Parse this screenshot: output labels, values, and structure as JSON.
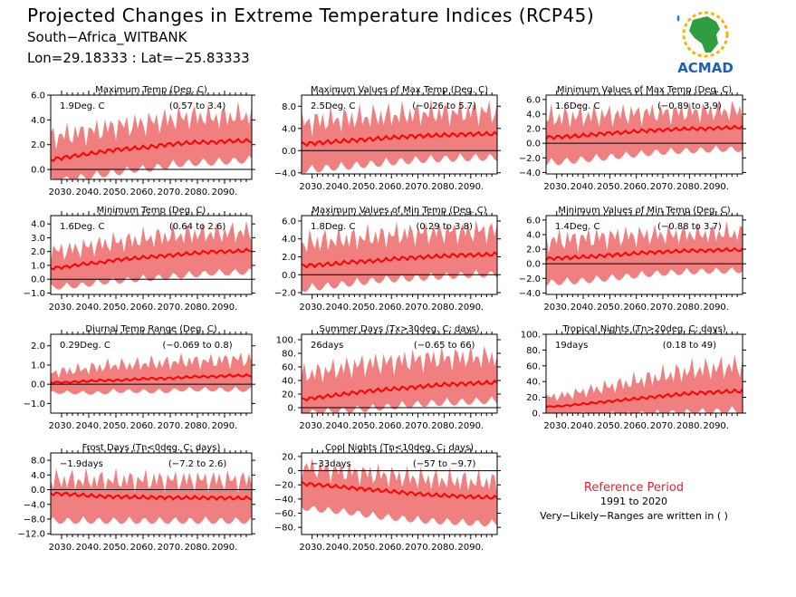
{
  "header": {
    "title": "Projected Changes in Extreme Temperature Indices (RCP45)",
    "station": "South−Africa_WITBANK",
    "coordinates": "Lon=29.18333 : Lat=−25.83333"
  },
  "logo": {
    "text": "ACMAD",
    "icon": "africa-map-logo"
  },
  "reference": {
    "title": "Reference Period",
    "years": "1991 to 2020",
    "note": "Very−Likely−Ranges are written in ( )"
  },
  "colors": {
    "band": "#f08080",
    "line": "#ff0000",
    "zero_line": "#000000"
  },
  "chart_data": [
    {
      "type": "area",
      "title": "Maximum Temp (Deg. C)",
      "mean_label": "1.9Deg. C",
      "range_label": "(0.57 to 3.4)",
      "xticks": [
        "2030.",
        "2040.",
        "2050.",
        "2060.",
        "2070.",
        "2080.",
        "2090."
      ],
      "xlim": [
        2026,
        2100
      ],
      "ylim": [
        -0.8,
        6.0
      ],
      "yticks": [
        "6.0",
        "4.0",
        "2.0",
        "0.0"
      ],
      "ytick_values": [
        6,
        4,
        2,
        0
      ],
      "x": [
        2026,
        2032,
        2038,
        2044,
        2050,
        2056,
        2062,
        2068,
        2074,
        2080,
        2086,
        2092,
        2100
      ],
      "median": [
        0.8,
        1.0,
        1.2,
        1.4,
        1.6,
        1.7,
        1.8,
        2.0,
        2.1,
        2.2,
        2.2,
        2.3,
        2.3
      ],
      "upper": [
        2.6,
        2.8,
        3.0,
        3.2,
        3.5,
        3.6,
        3.8,
        4.0,
        4.2,
        4.3,
        4.2,
        4.3,
        4.4
      ],
      "lower": [
        -0.6,
        -0.4,
        -0.2,
        0.0,
        0.2,
        0.4,
        0.5,
        0.7,
        0.9,
        1.0,
        1.0,
        1.1,
        1.2
      ]
    },
    {
      "type": "area",
      "title": "Maximum Values of Max Temp (Deg. C)",
      "mean_label": "2.5Deg. C",
      "range_label": "(−0.26 to 5.7)",
      "xticks": [
        "2030.",
        "2040.",
        "2050.",
        "2060.",
        "2070.",
        "2080.",
        "2090."
      ],
      "xlim": [
        2026,
        2100
      ],
      "ylim": [
        -4.2,
        10.0
      ],
      "yticks": [
        "8.0",
        "4.0",
        "0.0",
        "−4.0"
      ],
      "ytick_values": [
        8,
        4,
        0,
        -4
      ],
      "x": [
        2026,
        2032,
        2038,
        2044,
        2050,
        2056,
        2062,
        2068,
        2074,
        2080,
        2086,
        2092,
        2100
      ],
      "median": [
        1.2,
        1.4,
        1.6,
        1.8,
        2.0,
        2.2,
        2.4,
        2.6,
        2.7,
        2.8,
        2.9,
        3.0,
        3.0
      ],
      "upper": [
        5.0,
        5.3,
        5.6,
        5.8,
        6.0,
        6.2,
        6.4,
        6.6,
        6.8,
        6.8,
        6.9,
        7.0,
        7.0
      ],
      "lower": [
        -2.5,
        -2.3,
        -2.0,
        -1.8,
        -1.5,
        -1.3,
        -1.0,
        -0.8,
        -0.6,
        -0.5,
        -0.4,
        -0.3,
        -0.3
      ]
    },
    {
      "type": "area",
      "title": "Minimum Values of Max Temp (Deg. C)",
      "mean_label": "1.6Deg. C",
      "range_label": "(−0.89 to 3.9)",
      "xticks": [
        "2030.",
        "2040.",
        "2050.",
        "2060.",
        "2070.",
        "2080.",
        "2090."
      ],
      "xlim": [
        2026,
        2100
      ],
      "ylim": [
        -4.2,
        6.6
      ],
      "yticks": [
        "6.0",
        "4.0",
        "2.0",
        "0.0",
        "−2.0",
        "−4.0"
      ],
      "ytick_values": [
        6,
        4,
        2,
        0,
        -2,
        -4
      ],
      "x": [
        2026,
        2032,
        2038,
        2044,
        2050,
        2056,
        2062,
        2068,
        2074,
        2080,
        2086,
        2092,
        2100
      ],
      "median": [
        0.8,
        0.9,
        1.0,
        1.2,
        1.4,
        1.5,
        1.7,
        1.8,
        1.9,
        2.0,
        2.0,
        2.1,
        2.2
      ],
      "upper": [
        3.5,
        3.6,
        3.7,
        3.8,
        3.9,
        4.0,
        4.1,
        4.2,
        4.2,
        4.3,
        4.4,
        4.4,
        4.5
      ],
      "lower": [
        -2.0,
        -1.8,
        -1.6,
        -1.4,
        -1.2,
        -1.0,
        -0.8,
        -0.6,
        -0.5,
        -0.4,
        -0.3,
        -0.2,
        -0.2
      ]
    },
    {
      "type": "area",
      "title": "Minimum Temp (Deg. C)",
      "mean_label": "1.6Deg. C",
      "range_label": "(0.64 to 2.6)",
      "xticks": [
        "2030.",
        "2040.",
        "2050.",
        "2060.",
        "2070.",
        "2080.",
        "2090."
      ],
      "xlim": [
        2026,
        2100
      ],
      "ylim": [
        -1.1,
        4.6
      ],
      "yticks": [
        "4.0",
        "3.0",
        "2.0",
        "1.0",
        "0.0",
        "−1.0"
      ],
      "ytick_values": [
        4,
        3,
        2,
        1,
        0,
        -1
      ],
      "x": [
        2026,
        2032,
        2038,
        2044,
        2050,
        2056,
        2062,
        2068,
        2074,
        2080,
        2086,
        2092,
        2100
      ],
      "median": [
        0.8,
        0.9,
        1.1,
        1.2,
        1.4,
        1.5,
        1.6,
        1.7,
        1.8,
        1.9,
        2.0,
        2.0,
        2.1
      ],
      "upper": [
        2.0,
        2.1,
        2.3,
        2.5,
        2.7,
        2.8,
        3.0,
        3.1,
        3.2,
        3.3,
        3.3,
        3.4,
        3.4
      ],
      "lower": [
        -0.3,
        -0.2,
        -0.1,
        0.1,
        0.2,
        0.3,
        0.4,
        0.5,
        0.6,
        0.7,
        0.8,
        0.8,
        0.9
      ]
    },
    {
      "type": "area",
      "title": "Maximum Values of Min Temp (Deg. C)",
      "mean_label": "1.8Deg. C",
      "range_label": "(0.29 to 3.8)",
      "xticks": [
        "2030.",
        "2040.",
        "2050.",
        "2060.",
        "2070.",
        "2080.",
        "2090."
      ],
      "xlim": [
        2026,
        2100
      ],
      "ylim": [
        -2.2,
        6.6
      ],
      "yticks": [
        "6.0",
        "4.0",
        "2.0",
        "0.0",
        "−2.0"
      ],
      "ytick_values": [
        6,
        4,
        2,
        0,
        -2
      ],
      "x": [
        2026,
        2032,
        2038,
        2044,
        2050,
        2056,
        2062,
        2068,
        2074,
        2080,
        2086,
        2092,
        2100
      ],
      "median": [
        1.0,
        1.1,
        1.2,
        1.4,
        1.5,
        1.6,
        1.8,
        1.9,
        2.0,
        2.1,
        2.2,
        2.2,
        2.3
      ],
      "upper": [
        3.5,
        3.7,
        3.9,
        4.0,
        4.2,
        4.3,
        4.5,
        4.6,
        4.7,
        4.8,
        4.8,
        4.9,
        4.9
      ],
      "lower": [
        -1.0,
        -0.8,
        -0.6,
        -0.4,
        -0.2,
        0.0,
        0.1,
        0.2,
        0.3,
        0.4,
        0.5,
        0.6,
        0.6
      ]
    },
    {
      "type": "area",
      "title": "Minimum Values of Min Temp (Deg. C)",
      "mean_label": "1.4Deg. C",
      "range_label": "(−0.88 to 3.7)",
      "xticks": [
        "2030.",
        "2040.",
        "2050.",
        "2060.",
        "2070.",
        "2080.",
        "2090."
      ],
      "xlim": [
        2026,
        2100
      ],
      "ylim": [
        -4.2,
        6.6
      ],
      "yticks": [
        "6.0",
        "4.0",
        "2.0",
        "0.0",
        "−2.0",
        "−4.0"
      ],
      "ytick_values": [
        6,
        4,
        2,
        0,
        -2,
        -4
      ],
      "x": [
        2026,
        2032,
        2038,
        2044,
        2050,
        2056,
        2062,
        2068,
        2074,
        2080,
        2086,
        2092,
        2100
      ],
      "median": [
        0.7,
        0.8,
        0.9,
        1.0,
        1.2,
        1.3,
        1.5,
        1.6,
        1.7,
        1.8,
        1.8,
        1.9,
        1.9
      ],
      "upper": [
        3.2,
        3.3,
        3.4,
        3.6,
        3.7,
        3.8,
        3.9,
        4.0,
        4.0,
        4.1,
        4.1,
        4.2,
        4.2
      ],
      "lower": [
        -2.0,
        -1.8,
        -1.7,
        -1.5,
        -1.3,
        -1.1,
        -0.9,
        -0.7,
        -0.6,
        -0.5,
        -0.4,
        -0.4,
        -0.3
      ]
    },
    {
      "type": "area",
      "title": "Diurnal Temp Range (Deg. C)",
      "mean_label": "0.29Deg. C",
      "range_label": "(−0.069 to 0.8)",
      "xticks": [
        "2030.",
        "2040.",
        "2050.",
        "2060.",
        "2070.",
        "2080.",
        "2090."
      ],
      "xlim": [
        2026,
        2100
      ],
      "ylim": [
        -1.5,
        2.6
      ],
      "yticks": [
        "2.0",
        "1.0",
        "0.0",
        "−1.0"
      ],
      "ytick_values": [
        2,
        1,
        0,
        -1
      ],
      "x": [
        2026,
        2032,
        2038,
        2044,
        2050,
        2056,
        2062,
        2068,
        2074,
        2080,
        2086,
        2092,
        2100
      ],
      "median": [
        0.1,
        0.1,
        0.15,
        0.2,
        0.2,
        0.25,
        0.3,
        0.3,
        0.35,
        0.4,
        0.4,
        0.45,
        0.45
      ],
      "upper": [
        0.6,
        0.7,
        0.8,
        0.9,
        1.0,
        1.0,
        1.1,
        1.1,
        1.2,
        1.2,
        1.2,
        1.3,
        1.3
      ],
      "lower": [
        -0.3,
        -0.3,
        -0.3,
        -0.3,
        -0.2,
        -0.2,
        -0.2,
        -0.2,
        -0.1,
        -0.1,
        -0.1,
        -0.1,
        -0.1
      ]
    },
    {
      "type": "area",
      "title": "Summer Days (Tx>30deg. C; days)",
      "mean_label": "26days",
      "range_label": "(−0.65 to 66)",
      "xticks": [
        "2030.",
        "2040.",
        "2050.",
        "2060.",
        "2070.",
        "2080.",
        "2090."
      ],
      "xlim": [
        2026,
        2100
      ],
      "ylim": [
        -8,
        108
      ],
      "yticks": [
        "100.",
        "80.",
        "60.",
        "40.",
        "20.",
        "0."
      ],
      "ytick_values": [
        100,
        80,
        60,
        40,
        20,
        0
      ],
      "x": [
        2026,
        2032,
        2038,
        2044,
        2050,
        2056,
        2062,
        2068,
        2074,
        2080,
        2086,
        2092,
        2100
      ],
      "median": [
        12,
        15,
        18,
        21,
        24,
        26,
        28,
        30,
        32,
        34,
        35,
        36,
        37
      ],
      "upper": [
        48,
        52,
        56,
        60,
        64,
        66,
        68,
        70,
        72,
        73,
        74,
        74,
        75
      ],
      "lower": [
        -2,
        0,
        2,
        4,
        6,
        8,
        10,
        12,
        14,
        15,
        16,
        17,
        18
      ]
    },
    {
      "type": "area",
      "title": "Tropical Nights (Tn>20deg. C; days)",
      "mean_label": "19days",
      "range_label": "(0.18 to 49)",
      "xticks": [
        "2030.",
        "2040.",
        "2050.",
        "2060.",
        "2070.",
        "2080.",
        "2090."
      ],
      "xlim": [
        2026,
        2100
      ],
      "ylim": [
        0,
        100
      ],
      "yticks": [
        "100.",
        "80.",
        "60.",
        "40.",
        "20.",
        "0."
      ],
      "ytick_values": [
        100,
        80,
        60,
        40,
        20,
        0
      ],
      "x": [
        2026,
        2032,
        2038,
        2044,
        2050,
        2056,
        2062,
        2068,
        2074,
        2080,
        2086,
        2092,
        2100
      ],
      "median": [
        8,
        9,
        11,
        13,
        15,
        17,
        19,
        21,
        23,
        25,
        26,
        27,
        28
      ],
      "upper": [
        20,
        22,
        26,
        30,
        34,
        38,
        42,
        46,
        50,
        54,
        56,
        58,
        60
      ],
      "lower": [
        1,
        1,
        2,
        2,
        3,
        3,
        4,
        5,
        6,
        7,
        8,
        9,
        10
      ]
    },
    {
      "type": "area",
      "title": "Frost Days (Tn<0deg. C; days)",
      "mean_label": "−1.9days",
      "range_label": "(−7.2 to 2.6)",
      "xticks": [
        "2030.",
        "2040.",
        "2050.",
        "2060.",
        "2070.",
        "2080.",
        "2090."
      ],
      "xlim": [
        2026,
        2100
      ],
      "ylim": [
        -12.2,
        10.0
      ],
      "yticks": [
        "8.0",
        "4.0",
        "0.0",
        "−4.0",
        "−8.0",
        "−12.0"
      ],
      "ytick_values": [
        8,
        4,
        0,
        -4,
        -8,
        -12
      ],
      "x": [
        2026,
        2032,
        2038,
        2044,
        2050,
        2056,
        2062,
        2068,
        2074,
        2080,
        2086,
        2092,
        2100
      ],
      "median": [
        -1.0,
        -1.2,
        -1.5,
        -1.8,
        -1.9,
        -2.0,
        -2.1,
        -2.1,
        -2.2,
        -2.2,
        -2.2,
        -2.3,
        -2.3
      ],
      "upper": [
        2.6,
        2.6,
        2.6,
        2.6,
        2.6,
        2.6,
        2.6,
        2.6,
        2.6,
        2.6,
        2.6,
        2.6,
        2.6
      ],
      "lower": [
        -7.2,
        -7.2,
        -7.2,
        -7.2,
        -7.2,
        -7.2,
        -7.2,
        -7.2,
        -7.2,
        -7.2,
        -7.2,
        -7.2,
        -7.2
      ]
    },
    {
      "type": "area",
      "title": "Cool Nights (Tn<10deg. C; days)",
      "mean_label": "−33days",
      "range_label": "(−57 to −9.7)",
      "xticks": [
        "2030.",
        "2040.",
        "2050.",
        "2060.",
        "2070.",
        "2080.",
        "2090."
      ],
      "xlim": [
        2026,
        2100
      ],
      "ylim": [
        -90,
        25
      ],
      "yticks": [
        "20.",
        "0.",
        "−20.",
        "−40.",
        "−60.",
        "−80."
      ],
      "ytick_values": [
        20,
        0,
        -20,
        -40,
        -60,
        -80
      ],
      "x": [
        2026,
        2032,
        2038,
        2044,
        2050,
        2056,
        2062,
        2068,
        2074,
        2080,
        2086,
        2092,
        2100
      ],
      "median": [
        -18,
        -20,
        -22,
        -24,
        -26,
        -28,
        -30,
        -32,
        -34,
        -35,
        -36,
        -37,
        -38
      ],
      "upper": [
        5,
        3,
        0,
        -2,
        -4,
        -6,
        -8,
        -10,
        -12,
        -13,
        -14,
        -15,
        -16
      ],
      "lower": [
        -45,
        -48,
        -50,
        -52,
        -55,
        -58,
        -60,
        -62,
        -64,
        -65,
        -66,
        -67,
        -68
      ]
    }
  ]
}
